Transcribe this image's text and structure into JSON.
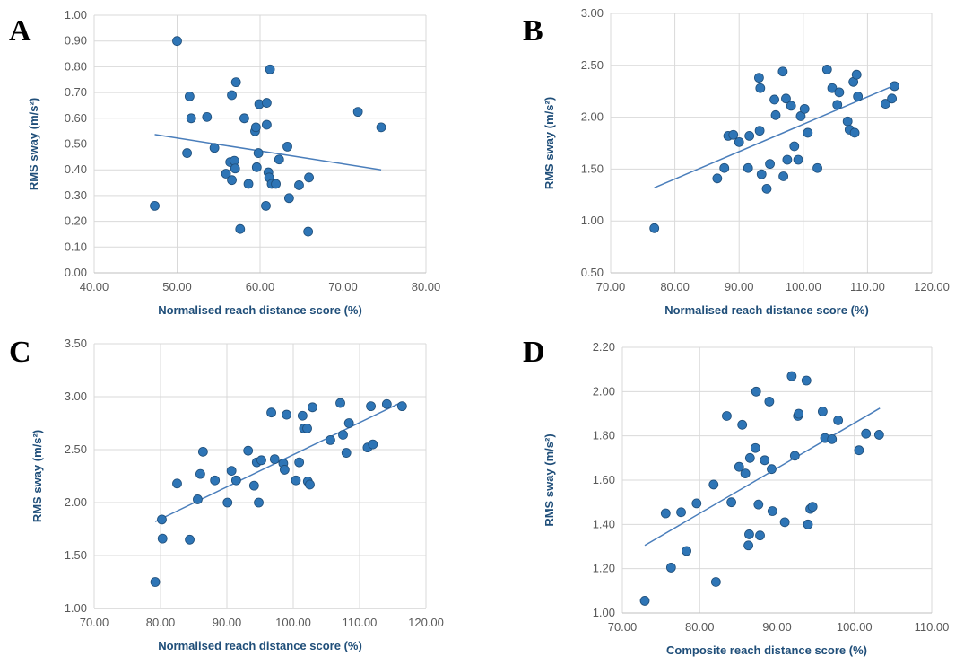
{
  "chart_data": [
    {
      "type": "scatter",
      "panel": "A",
      "xlabel": "Normalised reach distance score (%)",
      "ylabel": "RMS sway (m/s²)",
      "xlim": [
        40,
        80
      ],
      "ylim": [
        0,
        1
      ],
      "x_ticks": [
        "40.00",
        "50.00",
        "60.00",
        "70.00",
        "80.00"
      ],
      "y_ticks": [
        "0.00",
        "0.10",
        "0.20",
        "0.30",
        "0.40",
        "0.50",
        "0.60",
        "0.70",
        "0.80",
        "0.90",
        "1.00"
      ],
      "trendline": {
        "x": [
          47.3,
          74.6
        ],
        "y": [
          0.537,
          0.4
        ]
      },
      "points": [
        [
          47.3,
          0.26
        ],
        [
          50.0,
          0.9
        ],
        [
          51.2,
          0.465
        ],
        [
          51.5,
          0.685
        ],
        [
          51.7,
          0.6
        ],
        [
          53.6,
          0.605
        ],
        [
          54.5,
          0.485
        ],
        [
          55.9,
          0.385
        ],
        [
          56.4,
          0.43
        ],
        [
          56.6,
          0.36
        ],
        [
          56.6,
          0.69
        ],
        [
          56.9,
          0.435
        ],
        [
          57.0,
          0.405
        ],
        [
          57.1,
          0.74
        ],
        [
          57.6,
          0.17
        ],
        [
          58.1,
          0.6
        ],
        [
          58.6,
          0.345
        ],
        [
          59.4,
          0.55
        ],
        [
          59.5,
          0.565
        ],
        [
          59.6,
          0.41
        ],
        [
          59.8,
          0.465
        ],
        [
          59.9,
          0.655
        ],
        [
          60.7,
          0.26
        ],
        [
          60.8,
          0.575
        ],
        [
          60.8,
          0.66
        ],
        [
          61.0,
          0.39
        ],
        [
          61.1,
          0.37
        ],
        [
          61.2,
          0.79
        ],
        [
          61.4,
          0.345
        ],
        [
          61.9,
          0.345
        ],
        [
          62.3,
          0.44
        ],
        [
          63.3,
          0.49
        ],
        [
          63.5,
          0.29
        ],
        [
          64.7,
          0.34
        ],
        [
          65.8,
          0.16
        ],
        [
          65.9,
          0.37
        ],
        [
          71.8,
          0.625
        ],
        [
          74.6,
          0.565
        ]
      ]
    },
    {
      "type": "scatter",
      "panel": "B",
      "xlabel": "Normalised reach distance score (%)",
      "ylabel": "RMS sway (m/s²)",
      "xlim": [
        70,
        120
      ],
      "ylim": [
        0.5,
        3.0
      ],
      "x_ticks": [
        "70.00",
        "80.00",
        "90.00",
        "100.00",
        "110.00",
        "120.00"
      ],
      "y_ticks": [
        "0.50",
        "1.00",
        "1.50",
        "2.00",
        "2.50",
        "3.00"
      ],
      "trendline": {
        "x": [
          76.8,
          114.3
        ],
        "y": [
          1.32,
          2.31
        ]
      },
      "points": [
        [
          76.8,
          0.93
        ],
        [
          86.6,
          1.41
        ],
        [
          87.7,
          1.51
        ],
        [
          88.3,
          1.82
        ],
        [
          89.1,
          1.83
        ],
        [
          90.0,
          1.76
        ],
        [
          91.4,
          1.51
        ],
        [
          91.6,
          1.82
        ],
        [
          93.1,
          2.38
        ],
        [
          93.2,
          1.87
        ],
        [
          93.3,
          2.28
        ],
        [
          93.5,
          1.45
        ],
        [
          94.3,
          1.31
        ],
        [
          94.8,
          1.55
        ],
        [
          95.5,
          2.17
        ],
        [
          95.7,
          2.02
        ],
        [
          96.8,
          2.44
        ],
        [
          96.9,
          1.43
        ],
        [
          97.3,
          2.18
        ],
        [
          97.5,
          1.59
        ],
        [
          98.1,
          2.11
        ],
        [
          98.6,
          1.72
        ],
        [
          99.2,
          1.59
        ],
        [
          99.6,
          2.01
        ],
        [
          100.2,
          2.08
        ],
        [
          100.7,
          1.85
        ],
        [
          102.2,
          1.51
        ],
        [
          103.7,
          2.46
        ],
        [
          104.5,
          2.28
        ],
        [
          105.3,
          2.12
        ],
        [
          105.6,
          2.24
        ],
        [
          106.9,
          1.96
        ],
        [
          107.2,
          1.88
        ],
        [
          107.8,
          2.34
        ],
        [
          108.0,
          1.85
        ],
        [
          108.3,
          2.41
        ],
        [
          108.5,
          2.2
        ],
        [
          112.8,
          2.13
        ],
        [
          113.8,
          2.18
        ],
        [
          114.2,
          2.3
        ]
      ]
    },
    {
      "type": "scatter",
      "panel": "C",
      "xlabel": "Normalised reach distance score (%)",
      "ylabel": "RMS sway (m/s²)",
      "xlim": [
        70,
        120
      ],
      "ylim": [
        1.0,
        3.5
      ],
      "x_ticks": [
        "70.00",
        "80.00",
        "90.00",
        "100.00",
        "110.00",
        "120.00"
      ],
      "y_ticks": [
        "1.00",
        "1.50",
        "2.00",
        "2.50",
        "3.00",
        "3.50"
      ],
      "trendline": {
        "x": [
          79.2,
          116.4
        ],
        "y": [
          1.82,
          2.95
        ]
      },
      "points": [
        [
          79.2,
          1.25
        ],
        [
          80.2,
          1.84
        ],
        [
          80.3,
          1.66
        ],
        [
          82.5,
          2.18
        ],
        [
          84.4,
          1.65
        ],
        [
          85.6,
          2.03
        ],
        [
          86.0,
          2.27
        ],
        [
          86.4,
          2.48
        ],
        [
          88.2,
          2.21
        ],
        [
          90.1,
          2.0
        ],
        [
          90.7,
          2.3
        ],
        [
          91.4,
          2.21
        ],
        [
          93.2,
          2.49
        ],
        [
          94.1,
          2.16
        ],
        [
          94.5,
          2.38
        ],
        [
          94.8,
          2.0
        ],
        [
          95.2,
          2.4
        ],
        [
          96.7,
          2.85
        ],
        [
          97.2,
          2.41
        ],
        [
          98.5,
          2.37
        ],
        [
          98.7,
          2.31
        ],
        [
          99.0,
          2.83
        ],
        [
          100.4,
          2.21
        ],
        [
          100.9,
          2.38
        ],
        [
          101.4,
          2.82
        ],
        [
          101.6,
          2.7
        ],
        [
          102.1,
          2.7
        ],
        [
          102.2,
          2.2
        ],
        [
          102.5,
          2.17
        ],
        [
          102.9,
          2.9
        ],
        [
          105.6,
          2.59
        ],
        [
          107.1,
          2.94
        ],
        [
          107.5,
          2.64
        ],
        [
          108.0,
          2.47
        ],
        [
          108.4,
          2.75
        ],
        [
          111.2,
          2.52
        ],
        [
          111.7,
          2.91
        ],
        [
          112.0,
          2.55
        ],
        [
          114.1,
          2.93
        ],
        [
          116.4,
          2.91
        ]
      ]
    },
    {
      "type": "scatter",
      "panel": "D",
      "xlabel": "Composite  reach distance score (%)",
      "ylabel": "RMS sway (m/s²)",
      "xlim": [
        70,
        110
      ],
      "ylim": [
        1.0,
        2.2
      ],
      "x_ticks": [
        "70.00",
        "80.00",
        "90.00",
        "100.00",
        "110.00"
      ],
      "y_ticks": [
        "1.00",
        "1.20",
        "1.40",
        "1.60",
        "1.80",
        "2.00",
        "2.20"
      ],
      "trendline": {
        "x": [
          72.9,
          103.3
        ],
        "y": [
          1.305,
          1.925
        ]
      },
      "points": [
        [
          72.9,
          1.055
        ],
        [
          75.6,
          1.45
        ],
        [
          76.3,
          1.205
        ],
        [
          77.6,
          1.455
        ],
        [
          78.3,
          1.28
        ],
        [
          79.6,
          1.495
        ],
        [
          81.8,
          1.58
        ],
        [
          82.1,
          1.14
        ],
        [
          83.5,
          1.89
        ],
        [
          84.1,
          1.5
        ],
        [
          85.1,
          1.66
        ],
        [
          85.5,
          1.85
        ],
        [
          85.9,
          1.63
        ],
        [
          86.3,
          1.305
        ],
        [
          86.4,
          1.355
        ],
        [
          86.5,
          1.7
        ],
        [
          87.2,
          1.745
        ],
        [
          87.3,
          2.0
        ],
        [
          87.6,
          1.49
        ],
        [
          87.8,
          1.35
        ],
        [
          88.4,
          1.69
        ],
        [
          89.0,
          1.955
        ],
        [
          89.3,
          1.65
        ],
        [
          89.4,
          1.46
        ],
        [
          91.0,
          1.41
        ],
        [
          91.9,
          2.07
        ],
        [
          92.3,
          1.71
        ],
        [
          92.7,
          1.89
        ],
        [
          92.8,
          1.9
        ],
        [
          93.8,
          2.05
        ],
        [
          94.0,
          1.4
        ],
        [
          94.3,
          1.47
        ],
        [
          94.6,
          1.48
        ],
        [
          95.9,
          1.91
        ],
        [
          96.2,
          1.79
        ],
        [
          97.1,
          1.785
        ],
        [
          97.9,
          1.87
        ],
        [
          100.6,
          1.735
        ],
        [
          101.5,
          1.81
        ],
        [
          103.2,
          1.805
        ]
      ]
    }
  ]
}
